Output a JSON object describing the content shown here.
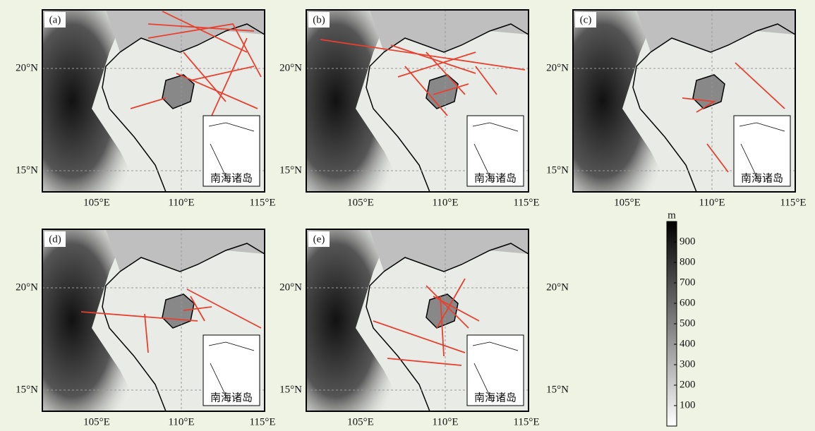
{
  "panels": [
    {
      "label": "(a)"
    },
    {
      "label": "(b)"
    },
    {
      "label": "(c)"
    },
    {
      "label": "(d)"
    },
    {
      "label": "(e)"
    }
  ],
  "axes": {
    "lat_ticks": [
      "20°N",
      "15°N"
    ],
    "lon_ticks": [
      "105°E",
      "110°E",
      "115°E"
    ]
  },
  "inset_label": "南海诸岛",
  "colorbar": {
    "unit": "m",
    "ticks": [
      100,
      200,
      300,
      400,
      500,
      600,
      700,
      800,
      900
    ],
    "lim": [
      0,
      1000
    ]
  }
}
